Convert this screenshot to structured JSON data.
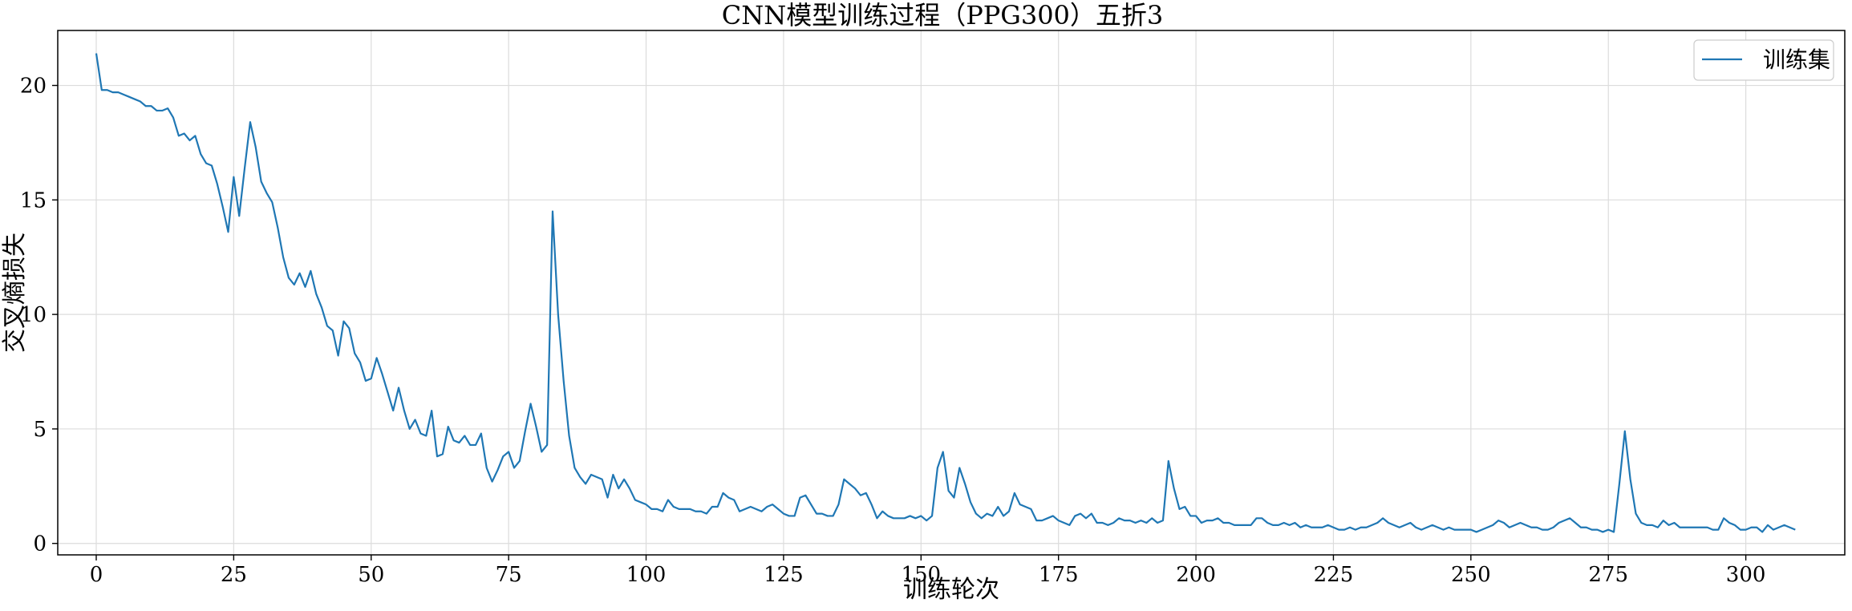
{
  "chart_data": {
    "type": "line",
    "title": "CNN模型训练过程（PPG300）五折3",
    "xlabel": "训练轮次",
    "ylabel": "交叉熵损失",
    "xlim": [
      -7,
      318
    ],
    "ylim": [
      -0.5,
      22.4
    ],
    "xticks": [
      "0",
      "25",
      "50",
      "75",
      "100",
      "125",
      "150",
      "175",
      "200",
      "225",
      "250",
      "275",
      "300"
    ],
    "xtick_values": [
      0,
      25,
      50,
      75,
      100,
      125,
      150,
      175,
      200,
      225,
      250,
      275,
      300
    ],
    "yticks": [
      "0",
      "5",
      "10",
      "15",
      "20"
    ],
    "ytick_values": [
      0,
      5,
      10,
      15,
      20
    ],
    "grid": true,
    "legend_position": "top-right",
    "series": [
      {
        "name": "训练集",
        "color": "#1f77b4",
        "x": [
          0,
          1,
          2,
          3,
          4,
          5,
          6,
          7,
          8,
          9,
          10,
          11,
          12,
          13,
          14,
          15,
          16,
          17,
          18,
          19,
          20,
          21,
          22,
          23,
          24,
          25,
          26,
          27,
          28,
          29,
          30,
          31,
          32,
          33,
          34,
          35,
          36,
          37,
          38,
          39,
          40,
          41,
          42,
          43,
          44,
          45,
          46,
          47,
          48,
          49,
          50,
          51,
          52,
          53,
          54,
          55,
          56,
          57,
          58,
          59,
          60,
          61,
          62,
          63,
          64,
          65,
          66,
          67,
          68,
          69,
          70,
          71,
          72,
          73,
          74,
          75,
          76,
          77,
          78,
          79,
          80,
          81,
          82,
          83,
          84,
          85,
          86,
          87,
          88,
          89,
          90,
          91,
          92,
          93,
          94,
          95,
          96,
          97,
          98,
          99,
          100,
          101,
          102,
          103,
          104,
          105,
          106,
          107,
          108,
          109,
          110,
          111,
          112,
          113,
          114,
          115,
          116,
          117,
          118,
          119,
          120,
          121,
          122,
          123,
          124,
          125,
          126,
          127,
          128,
          129,
          130,
          131,
          132,
          133,
          134,
          135,
          136,
          137,
          138,
          139,
          140,
          141,
          142,
          143,
          144,
          145,
          146,
          147,
          148,
          149,
          150,
          151,
          152,
          153,
          154,
          155,
          156,
          157,
          158,
          159,
          160,
          161,
          162,
          163,
          164,
          165,
          166,
          167,
          168,
          169,
          170,
          171,
          172,
          173,
          174,
          175,
          176,
          177,
          178,
          179,
          180,
          181,
          182,
          183,
          184,
          185,
          186,
          187,
          188,
          189,
          190,
          191,
          192,
          193,
          194,
          195,
          196,
          197,
          198,
          199,
          200,
          201,
          202,
          203,
          204,
          205,
          206,
          207,
          208,
          209,
          210,
          211,
          212,
          213,
          214,
          215,
          216,
          217,
          218,
          219,
          220,
          221,
          222,
          223,
          224,
          225,
          226,
          227,
          228,
          229,
          230,
          231,
          232,
          233,
          234,
          235,
          236,
          237,
          238,
          239,
          240,
          241,
          242,
          243,
          244,
          245,
          246,
          247,
          248,
          249,
          250,
          251,
          252,
          253,
          254,
          255,
          256,
          257,
          258,
          259,
          260,
          261,
          262,
          263,
          264,
          265,
          266,
          267,
          268,
          269,
          270,
          271,
          272,
          273,
          274,
          275,
          276,
          277,
          278,
          279,
          280,
          281,
          282,
          283,
          284,
          285,
          286,
          287,
          288,
          289,
          290,
          291,
          292,
          293,
          294,
          295,
          296,
          297,
          298,
          299,
          300,
          301,
          302,
          303,
          304,
          305,
          306,
          307,
          308,
          309
        ],
        "values": [
          21.4,
          19.8,
          19.8,
          19.7,
          19.7,
          19.6,
          19.5,
          19.4,
          19.3,
          19.1,
          19.1,
          18.9,
          18.9,
          19.0,
          18.6,
          17.8,
          17.9,
          17.6,
          17.8,
          17.0,
          16.6,
          16.5,
          15.7,
          14.7,
          13.6,
          16.0,
          14.3,
          16.4,
          18.4,
          17.3,
          15.8,
          15.3,
          14.9,
          13.8,
          12.5,
          11.6,
          11.3,
          11.8,
          11.2,
          11.9,
          10.9,
          10.3,
          9.5,
          9.3,
          8.2,
          9.7,
          9.4,
          8.3,
          7.9,
          7.1,
          7.2,
          8.1,
          7.4,
          6.6,
          5.8,
          6.8,
          5.8,
          5.0,
          5.4,
          4.8,
          4.7,
          5.8,
          3.8,
          3.9,
          5.1,
          4.5,
          4.4,
          4.7,
          4.3,
          4.3,
          4.8,
          3.3,
          2.7,
          3.2,
          3.8,
          4.0,
          3.3,
          3.6,
          4.9,
          6.1,
          5.1,
          4.0,
          4.3,
          14.5,
          10.0,
          7.1,
          4.7,
          3.3,
          2.9,
          2.6,
          3.0,
          2.9,
          2.8,
          2.0,
          3.0,
          2.4,
          2.8,
          2.4,
          1.9,
          1.8,
          1.7,
          1.5,
          1.5,
          1.4,
          1.9,
          1.6,
          1.5,
          1.5,
          1.5,
          1.4,
          1.4,
          1.3,
          1.6,
          1.6,
          2.2,
          2.0,
          1.9,
          1.4,
          1.5,
          1.6,
          1.5,
          1.4,
          1.6,
          1.7,
          1.5,
          1.3,
          1.2,
          1.2,
          2.0,
          2.1,
          1.7,
          1.3,
          1.3,
          1.2,
          1.2,
          1.7,
          2.8,
          2.6,
          2.4,
          2.1,
          2.2,
          1.7,
          1.1,
          1.4,
          1.2,
          1.1,
          1.1,
          1.1,
          1.2,
          1.1,
          1.2,
          1.0,
          1.2,
          3.3,
          4.0,
          2.3,
          2.0,
          3.3,
          2.6,
          1.8,
          1.3,
          1.1,
          1.3,
          1.2,
          1.6,
          1.2,
          1.4,
          2.2,
          1.7,
          1.6,
          1.5,
          1.0,
          1.0,
          1.1,
          1.2,
          1.0,
          0.9,
          0.8,
          1.2,
          1.3,
          1.1,
          1.3,
          0.9,
          0.9,
          0.8,
          0.9,
          1.1,
          1.0,
          1.0,
          0.9,
          1.0,
          0.9,
          1.1,
          0.9,
          1.0,
          3.6,
          2.4,
          1.5,
          1.6,
          1.2,
          1.2,
          0.9,
          1.0,
          1.0,
          1.1,
          0.9,
          0.9,
          0.8,
          0.8,
          0.8,
          0.8,
          1.1,
          1.1,
          0.9,
          0.8,
          0.8,
          0.9,
          0.8,
          0.9,
          0.7,
          0.8,
          0.7,
          0.7,
          0.7,
          0.8,
          0.7,
          0.6,
          0.6,
          0.7,
          0.6,
          0.7,
          0.7,
          0.8,
          0.9,
          1.1,
          0.9,
          0.8,
          0.7,
          0.8,
          0.9,
          0.7,
          0.6,
          0.7,
          0.8,
          0.7,
          0.6,
          0.7,
          0.6,
          0.6,
          0.6,
          0.6,
          0.5,
          0.6,
          0.7,
          0.8,
          1.0,
          0.9,
          0.7,
          0.8,
          0.9,
          0.8,
          0.7,
          0.7,
          0.6,
          0.6,
          0.7,
          0.9,
          1.0,
          1.1,
          0.9,
          0.7,
          0.7,
          0.6,
          0.6,
          0.5,
          0.6,
          0.5,
          2.6,
          4.9,
          2.8,
          1.3,
          0.9,
          0.8,
          0.8,
          0.7,
          1.0,
          0.8,
          0.9,
          0.7,
          0.7,
          0.7,
          0.7,
          0.7,
          0.7,
          0.6,
          0.6,
          1.1,
          0.9,
          0.8,
          0.6,
          0.6,
          0.7,
          0.7,
          0.5,
          0.8,
          0.6,
          0.7,
          0.8,
          0.7,
          0.6
        ]
      }
    ]
  }
}
